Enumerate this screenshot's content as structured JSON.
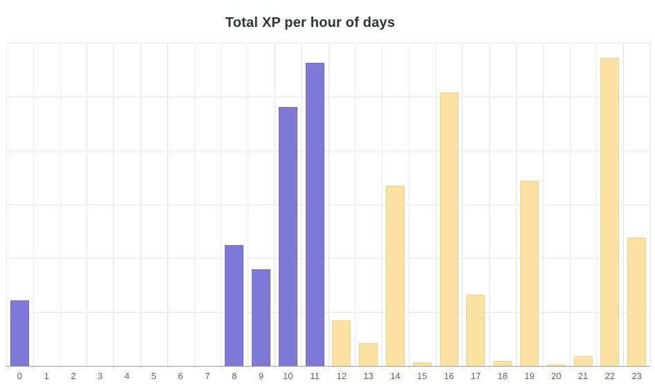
{
  "chart_data": {
    "type": "bar",
    "title": "Total XP per hour of days",
    "categories": [
      "0",
      "1",
      "2",
      "3",
      "4",
      "5",
      "6",
      "7",
      "8",
      "9",
      "10",
      "11",
      "12",
      "13",
      "14",
      "15",
      "16",
      "17",
      "18",
      "19",
      "20",
      "21",
      "22",
      "23"
    ],
    "values": [
      1.22,
      0,
      0,
      0,
      0,
      0,
      0,
      0,
      2.24,
      1.8,
      4.81,
      5.63,
      0.84,
      0.42,
      3.34,
      0.07,
      5.08,
      1.32,
      0.09,
      3.43,
      0.02,
      0.18,
      5.72,
      2.39
    ],
    "xlabel": "",
    "ylabel": "",
    "ylim": [
      0,
      6
    ],
    "y_tick_labels": [],
    "y_axis_labels_visible": false,
    "grid": true,
    "legend": "none",
    "color_groups": [
      {
        "hours": "0-11",
        "fill": "#7e7ad5",
        "border": "#6b67c6"
      },
      {
        "hours": "12-23",
        "fill": "#fbe2a3",
        "border": "#eed395"
      }
    ]
  },
  "style_colors": {
    "background": "#ffffff",
    "gridline": "#e9e9e9",
    "axis_line": "#9b9b9b",
    "tick_label": "#5f6368",
    "title": "#2e3338"
  }
}
